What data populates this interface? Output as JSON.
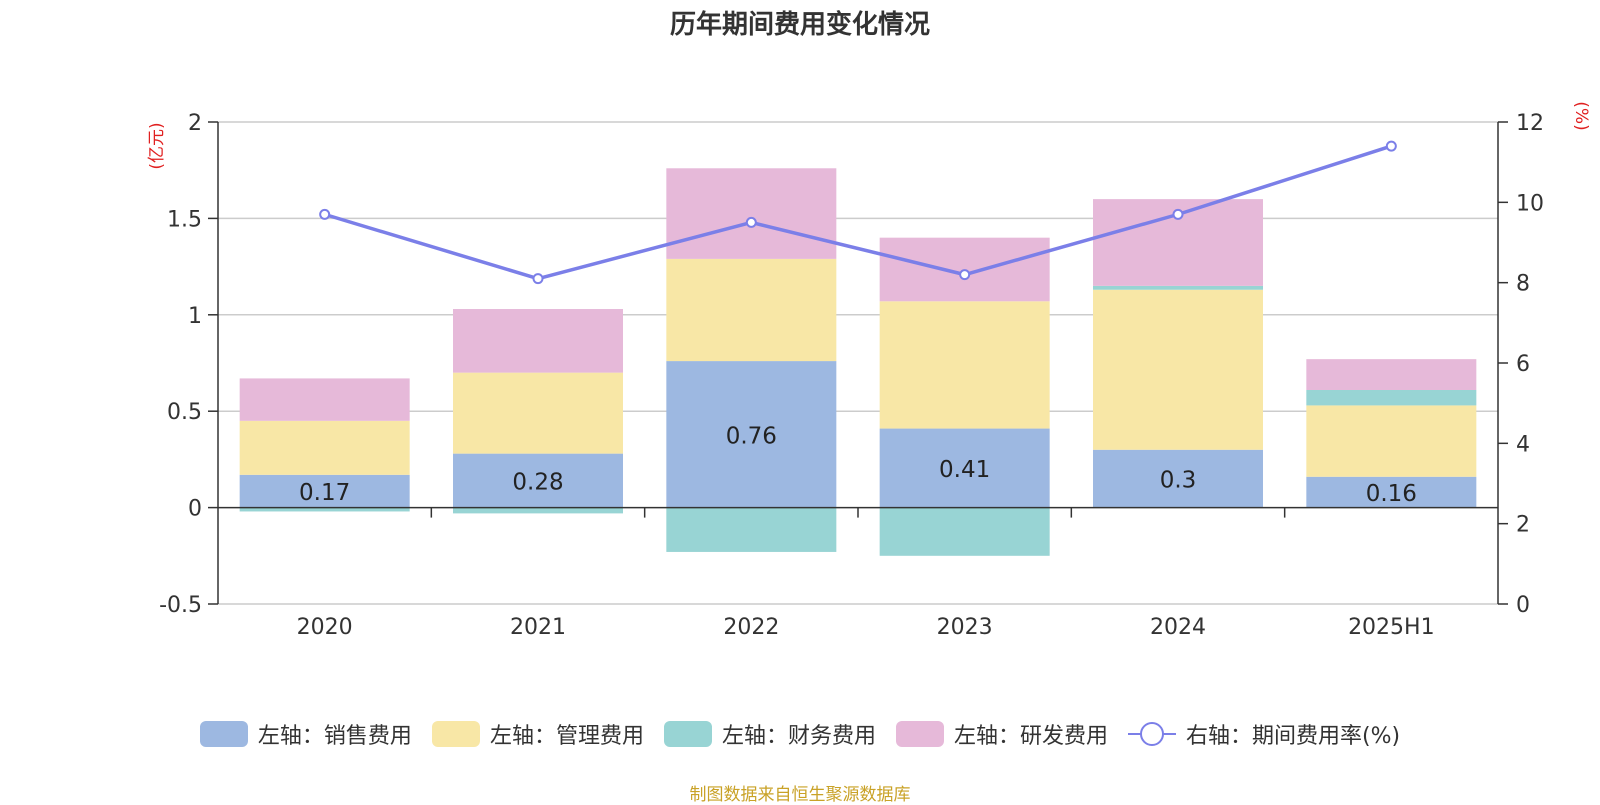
{
  "title": "历年期间费用变化情况",
  "source": "制图数据来自恒生聚源数据库",
  "chart_data": {
    "type": "bar",
    "stacked": true,
    "categories": [
      "2020",
      "2021",
      "2022",
      "2023",
      "2024",
      "2025H1"
    ],
    "left_axis": {
      "unit_label": "(亿元)",
      "ylim": [
        -0.5,
        2
      ],
      "ticks": [
        "-0.5",
        "0",
        "0.5",
        "1",
        "1.5",
        "2"
      ]
    },
    "right_axis": {
      "unit_label": "(%)",
      "ylim": [
        0,
        12
      ],
      "ticks": [
        "0",
        "2",
        "4",
        "6",
        "8",
        "10",
        "12"
      ]
    },
    "grid": true,
    "legend_position": "bottom",
    "series": [
      {
        "name": "左轴：销售费用",
        "color": "#9db8e1",
        "values": [
          0.17,
          0.28,
          0.76,
          0.41,
          0.3,
          0.16
        ],
        "data_labels": [
          "0.17",
          "0.28",
          "0.76",
          "0.41",
          "0.3",
          "0.16"
        ]
      },
      {
        "name": "左轴：管理费用",
        "color": "#f8e7a6",
        "values": [
          0.28,
          0.42,
          0.53,
          0.66,
          0.83,
          0.37
        ]
      },
      {
        "name": "左轴：财务费用",
        "color": "#98d4d4",
        "values": [
          -0.02,
          -0.03,
          -0.23,
          -0.25,
          0.02,
          0.08
        ]
      },
      {
        "name": "左轴：研发费用",
        "color": "#e6b9d9",
        "values": [
          0.22,
          0.33,
          0.47,
          0.33,
          0.45,
          0.16
        ]
      }
    ],
    "line": {
      "name": "右轴：期间费用率(%)",
      "color": "#7b7fe8",
      "axis": "right",
      "values": [
        9.7,
        8.1,
        9.5,
        8.2,
        9.7,
        11.4
      ]
    }
  }
}
